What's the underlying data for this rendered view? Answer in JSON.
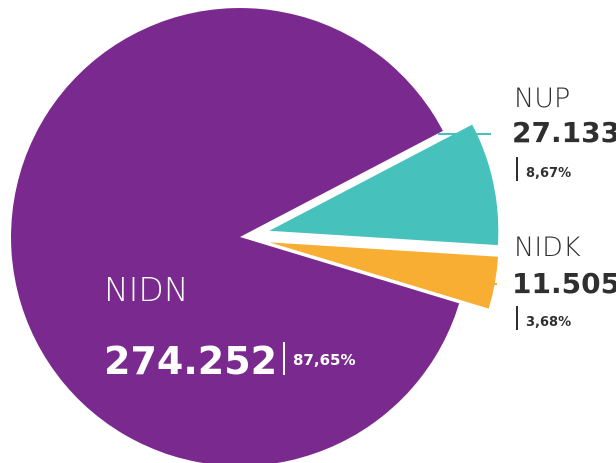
{
  "chart_data": {
    "type": "pie",
    "exploded": true,
    "slices": [
      {
        "name": "NIDN",
        "value": "274.252",
        "percent": "87,65%",
        "numeric_value": 274252,
        "color": "#7a2a8e"
      },
      {
        "name": "NUP",
        "value": "27.133",
        "percent": "8,67%",
        "numeric_value": 27133,
        "color": "#47c1bc"
      },
      {
        "name": "NIDK",
        "value": "11.505",
        "percent": "3,68%",
        "numeric_value": 11505,
        "color": "#f7ae33"
      }
    ],
    "text_color": "#2f2f2f",
    "inside_text_color": "#ffffff",
    "legend": "none"
  }
}
